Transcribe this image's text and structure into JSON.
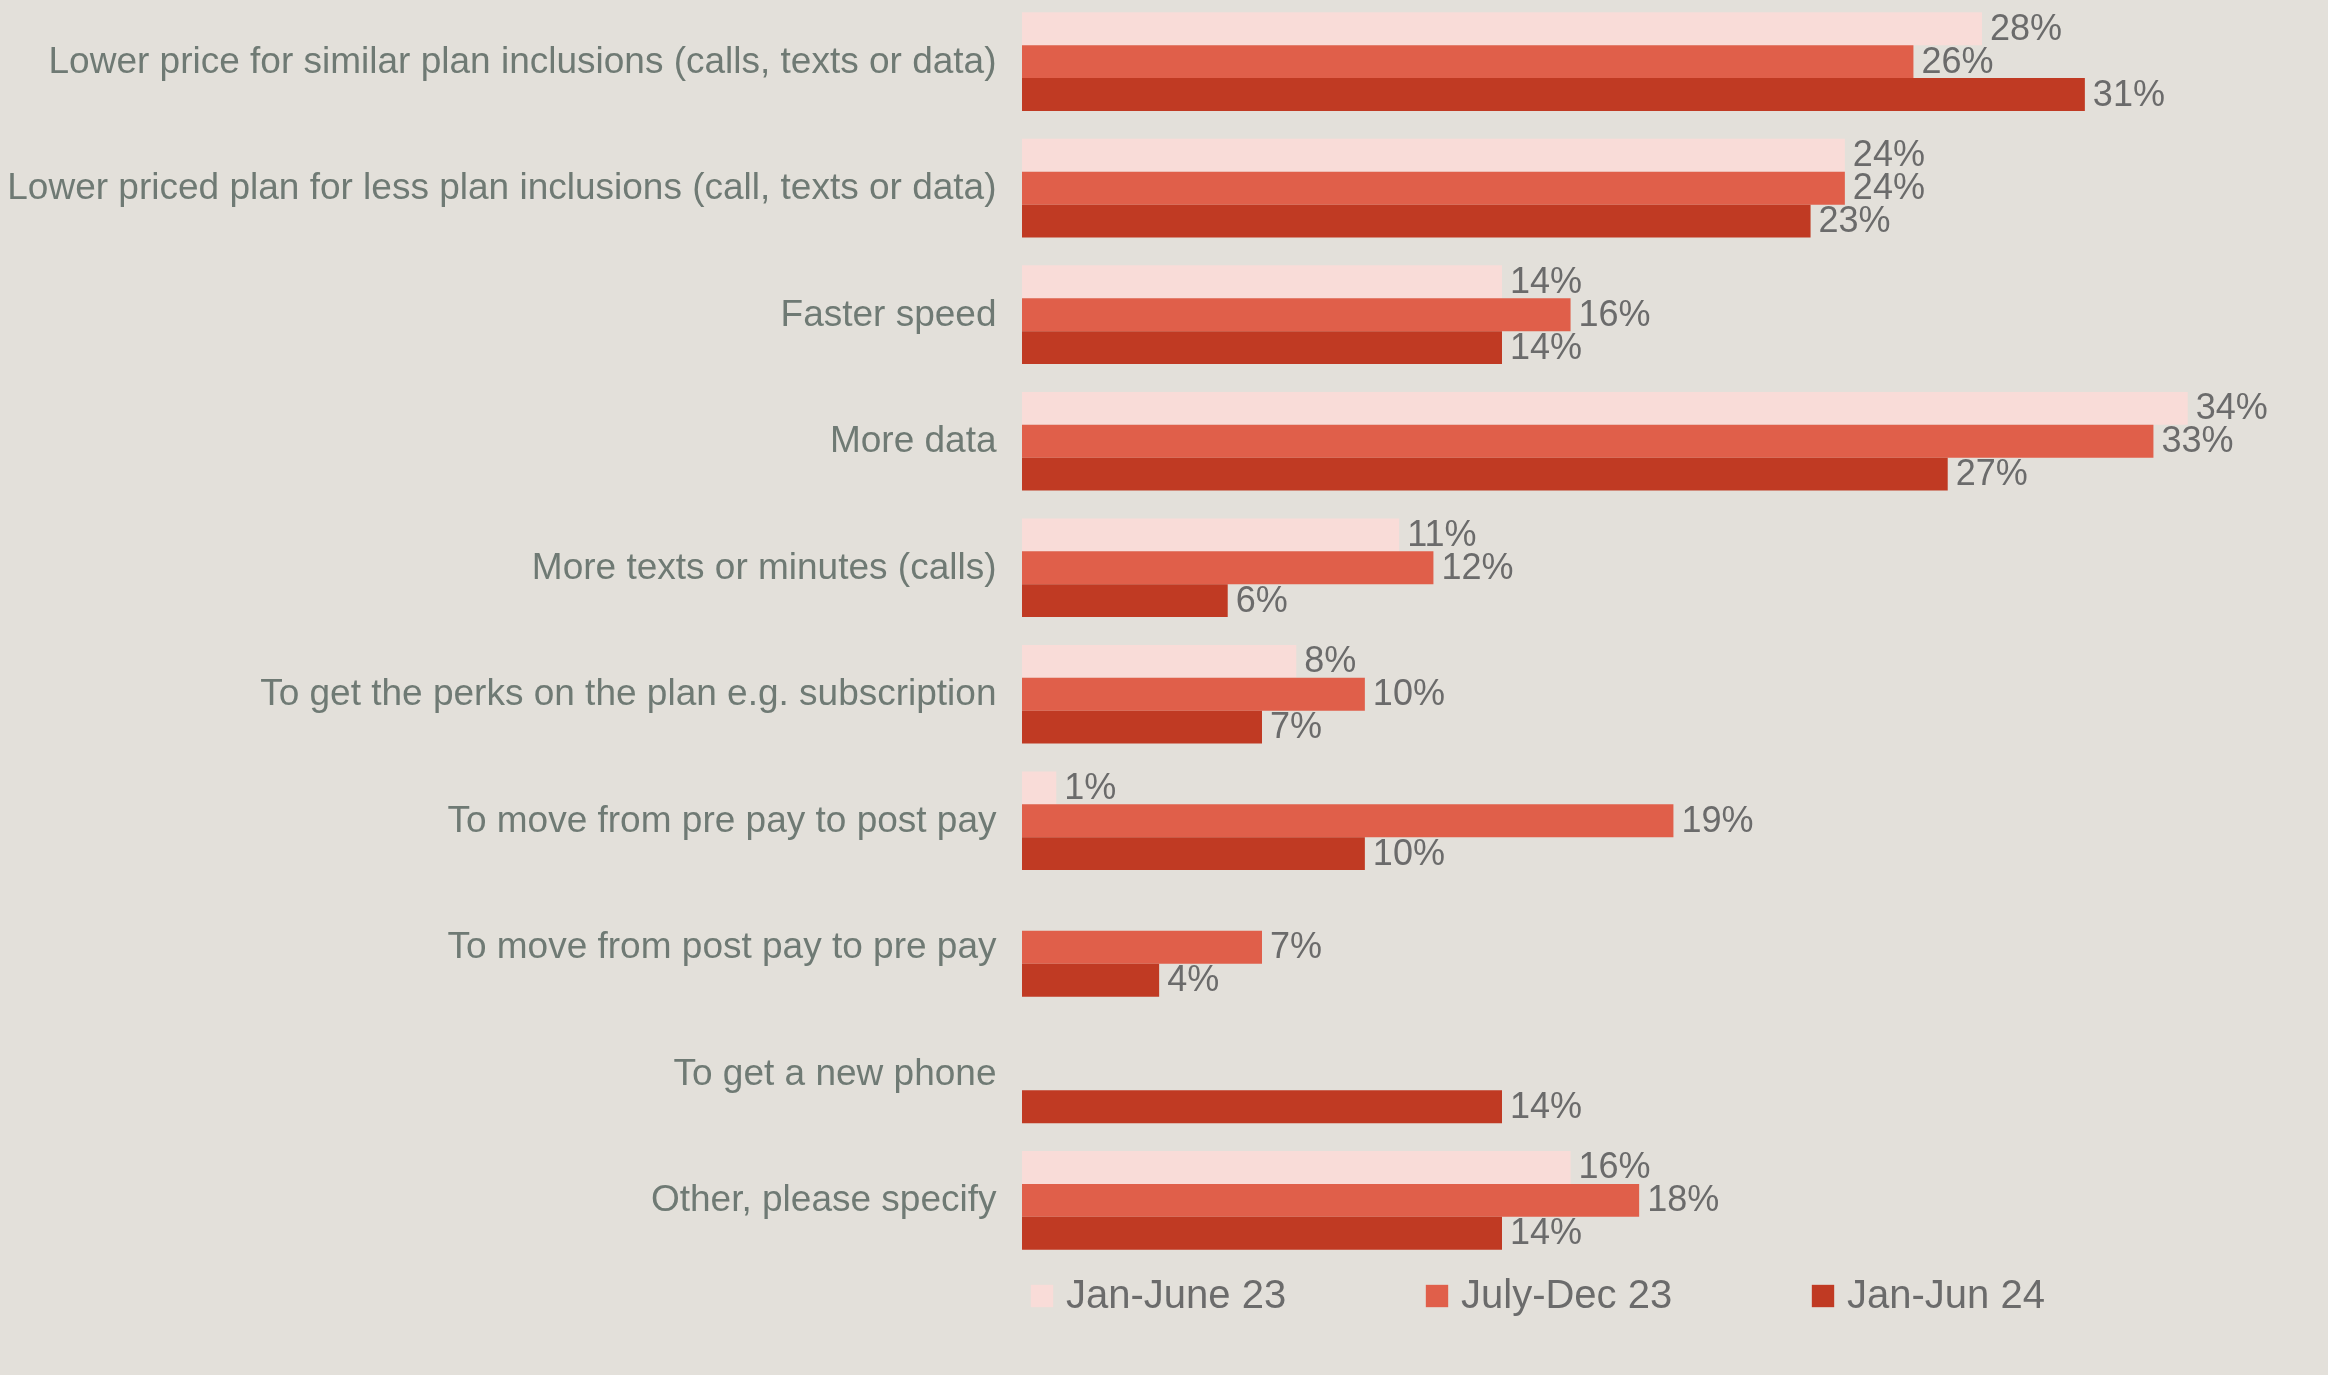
{
  "chart_data": {
    "type": "bar",
    "orientation": "horizontal",
    "categories": [
      "Lower price for similar plan inclusions (calls, texts or data)",
      "Lower priced plan for less plan inclusions (call, texts or data)",
      "Faster speed",
      "More data",
      "More texts or minutes (calls) ",
      "To get the perks on the plan e.g. subscription",
      "To move from pre pay to post pay",
      "To move from post pay to pre pay",
      "To get a new phone",
      "Other, please specify"
    ],
    "series": [
      {
        "name": "Jan-June 23",
        "color": "#f9dcd8",
        "values": [
          28,
          24,
          14,
          34,
          11,
          8,
          1,
          null,
          null,
          16
        ],
        "value_labels": [
          "28%",
          "24%",
          "14%",
          "34%",
          "11%",
          "8%",
          "1%",
          null,
          null,
          "16%"
        ]
      },
      {
        "name": "July-Dec 23",
        "color": "#e05f4a",
        "values": [
          26,
          24,
          16,
          33,
          12,
          10,
          19,
          7,
          null,
          18
        ],
        "value_labels": [
          "26%",
          "24%",
          "16%",
          "33%",
          "12%",
          "10%",
          "19%",
          "7%",
          null,
          "18%"
        ]
      },
      {
        "name": "Jan-Jun 24",
        "color": "#c03a23",
        "values": [
          31,
          23,
          14,
          27,
          6,
          7,
          10,
          4,
          14,
          14
        ],
        "value_labels": [
          "31%",
          "23%",
          "14%",
          "27%",
          "6%",
          "7%",
          "10%",
          "4%",
          "14%",
          "14%"
        ]
      }
    ],
    "legend": "bottom",
    "grid": false
  }
}
